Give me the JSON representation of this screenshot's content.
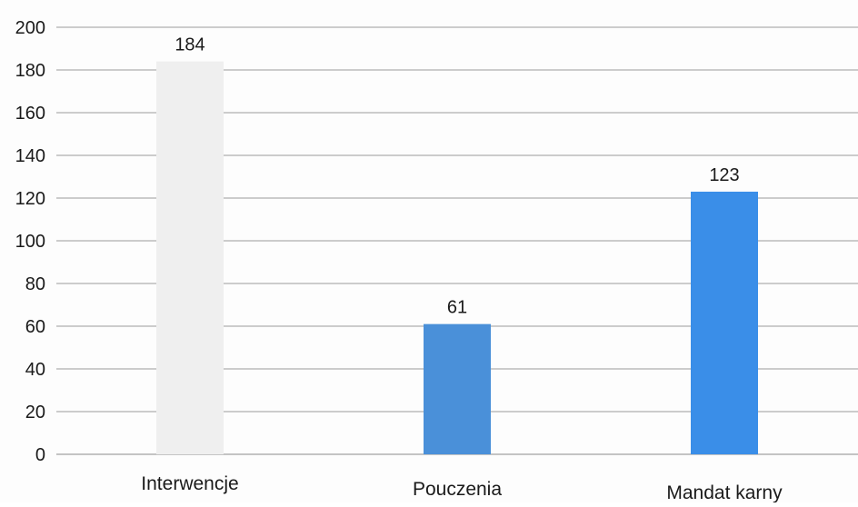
{
  "chart_data": {
    "type": "bar",
    "categories": [
      "Interwencje",
      "Pouczenia",
      "Mandat karny"
    ],
    "values": [
      184,
      61,
      123
    ],
    "data_labels": [
      "184",
      "61",
      "123"
    ],
    "colors": [
      "#efefef",
      "#4a90d9",
      "#3a8ee8"
    ],
    "ylim": [
      0,
      200
    ],
    "yticks": [
      0,
      20,
      40,
      60,
      80,
      100,
      120,
      140,
      160,
      180,
      200
    ],
    "ytick_labels": [
      "0",
      "20",
      "40",
      "60",
      "80",
      "100",
      "120",
      "140",
      "160",
      "180",
      "200"
    ],
    "grid": true,
    "legend": "none",
    "title": "",
    "xlabel": "",
    "ylabel": ""
  }
}
